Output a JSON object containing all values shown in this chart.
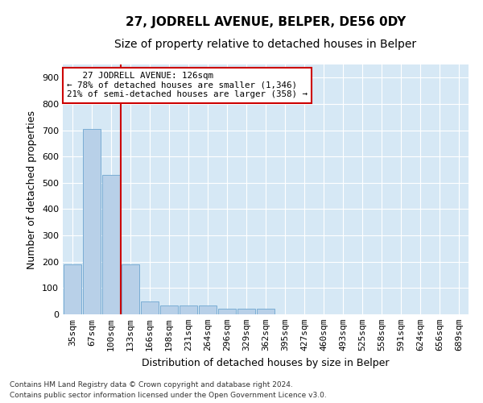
{
  "title": "27, JODRELL AVENUE, BELPER, DE56 0DY",
  "subtitle": "Size of property relative to detached houses in Belper",
  "xlabel": "Distribution of detached houses by size in Belper",
  "ylabel": "Number of detached properties",
  "categories": [
    "35sqm",
    "67sqm",
    "100sqm",
    "133sqm",
    "166sqm",
    "198sqm",
    "231sqm",
    "264sqm",
    "296sqm",
    "329sqm",
    "362sqm",
    "395sqm",
    "427sqm",
    "460sqm",
    "493sqm",
    "525sqm",
    "558sqm",
    "591sqm",
    "624sqm",
    "656sqm",
    "689sqm"
  ],
  "values": [
    190,
    705,
    530,
    190,
    50,
    35,
    35,
    35,
    20,
    20,
    20,
    0,
    0,
    0,
    0,
    0,
    0,
    0,
    0,
    0,
    0
  ],
  "bar_color": "#b8d0e8",
  "bar_edge_color": "#7aadd4",
  "bg_color": "#d6e8f5",
  "grid_color": "#ffffff",
  "red_line_x": 2.5,
  "annotation_line1": "   27 JODRELL AVENUE: 126sqm",
  "annotation_line2": "← 78% of detached houses are smaller (1,346)",
  "annotation_line3": "21% of semi-detached houses are larger (358) →",
  "annotation_box_color": "#ffffff",
  "annotation_box_edge": "#cc0000",
  "red_line_color": "#cc0000",
  "ylim": [
    0,
    950
  ],
  "yticks": [
    0,
    100,
    200,
    300,
    400,
    500,
    600,
    700,
    800,
    900
  ],
  "footnote1": "Contains HM Land Registry data © Crown copyright and database right 2024.",
  "footnote2": "Contains public sector information licensed under the Open Government Licence v3.0.",
  "title_fontsize": 11,
  "subtitle_fontsize": 10,
  "label_fontsize": 9,
  "tick_fontsize": 8,
  "fig_bg": "#ffffff"
}
